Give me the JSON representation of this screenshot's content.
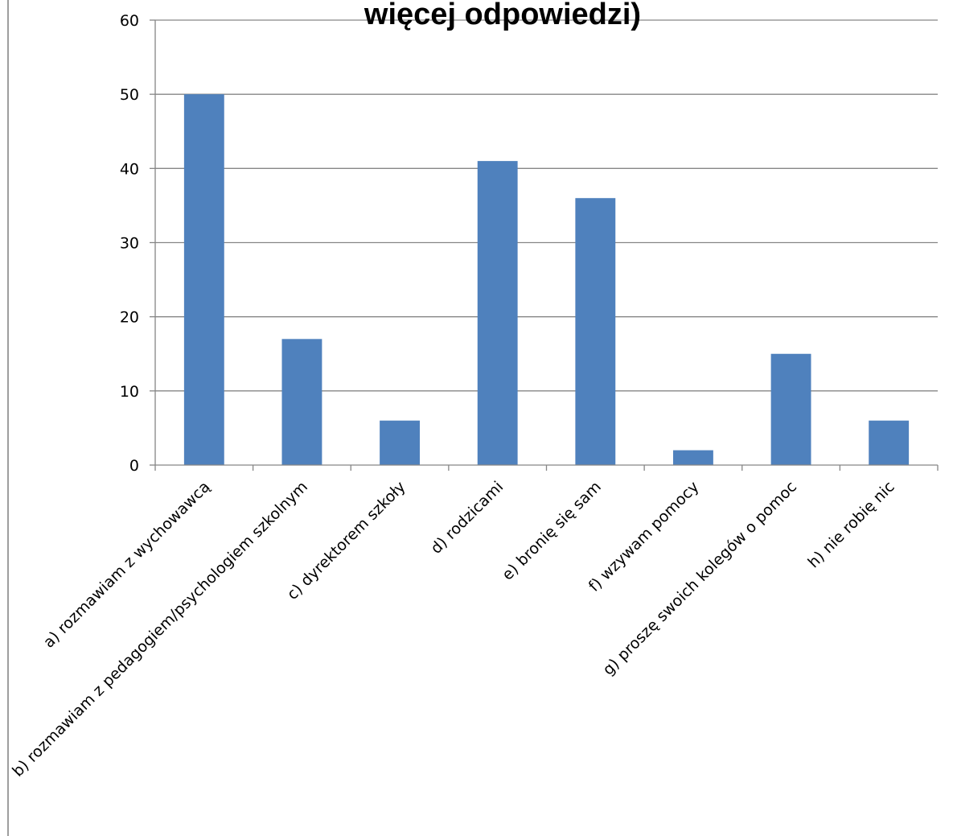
{
  "chart_data": {
    "type": "bar",
    "title": "więcej odpowiedzi)",
    "xlabel": "",
    "ylabel": "",
    "categories": [
      "a) rozmawiam z wychowawcą",
      "b) rozmawiam z pedagogiem/psychologiem szkolnym",
      "c) dyrektorem szkoły",
      "d) rodzicami",
      "e) bronię się sam",
      "f) wzywam pomocy",
      "g) proszę swoich kolegów o pomoc",
      "h) nie robię nic"
    ],
    "values": [
      50,
      17,
      6,
      41,
      36,
      2,
      15,
      6
    ],
    "ylim": [
      0,
      60
    ],
    "yticks": [
      0,
      10,
      20,
      30,
      40,
      50,
      60
    ],
    "grid": true,
    "legend": "none",
    "colors": {
      "bar": "#4F81BD",
      "grid": "#868686",
      "axis": "#868686"
    }
  }
}
